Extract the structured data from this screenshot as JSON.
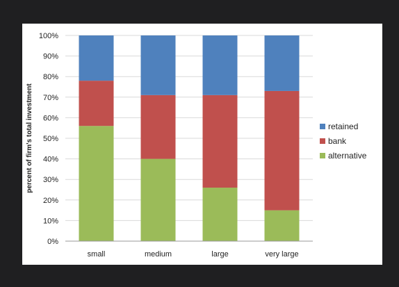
{
  "chart_data": {
    "type": "bar",
    "stacked": true,
    "categories": [
      "small",
      "medium",
      "large",
      "very large"
    ],
    "series": [
      {
        "name": "alternative",
        "color": "#9bbb59",
        "values": [
          56,
          40,
          26,
          15
        ]
      },
      {
        "name": "bank",
        "color": "#c0504d",
        "values": [
          22,
          31,
          45,
          58
        ]
      },
      {
        "name": "retained",
        "color": "#4f81bd",
        "values": [
          22,
          29,
          29,
          27
        ]
      }
    ],
    "legend_order": [
      "retained",
      "bank",
      "alternative"
    ],
    "ylabel": "percent of firm's total investment",
    "ylim": [
      0,
      100
    ],
    "yticks": [
      "0%",
      "10%",
      "20%",
      "30%",
      "40%",
      "50%",
      "60%",
      "70%",
      "80%",
      "90%",
      "100%"
    ],
    "grid": true,
    "legend_position": "right"
  }
}
